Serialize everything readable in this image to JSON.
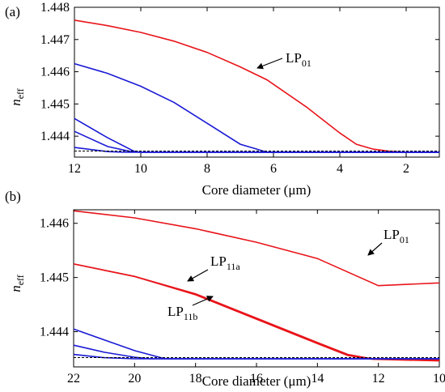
{
  "figure": {
    "panel_labels": [
      "(a)",
      "(b)"
    ]
  },
  "colors": {
    "fundamental": "#e8141a",
    "higher": "#1a1ad6",
    "cladding": "#000000"
  },
  "chart_data": [
    {
      "type": "line",
      "panel": "(a)",
      "xlabel": "Core diameter (μm)",
      "ylabel_main": "n",
      "ylabel_sub": "eff",
      "xlim": [
        12,
        1
      ],
      "ylim": [
        1.44335,
        1.448
      ],
      "x_reversed": true,
      "xticks": [
        12,
        10,
        8,
        6,
        4,
        2
      ],
      "yticks": [
        1.444,
        1.445,
        1.446,
        1.447,
        1.448
      ],
      "cladding_index": 1.4435,
      "series": [
        {
          "name": "LP01",
          "label_main": "LP",
          "label_sub": "01",
          "color": "#e8141a",
          "points": [
            [
              12,
              1.4476
            ],
            [
              11,
              1.44743
            ],
            [
              10,
              1.44722
            ],
            [
              9,
              1.44695
            ],
            [
              8,
              1.4466
            ],
            [
              7,
              1.44615
            ],
            [
              6.2,
              1.44575
            ],
            [
              5,
              1.4449
            ],
            [
              4,
              1.4441
            ],
            [
              3.5,
              1.44375
            ],
            [
              3,
              1.4436
            ],
            [
              2.5,
              1.44353
            ],
            [
              2,
              1.4435
            ],
            [
              1,
              1.4435
            ]
          ]
        },
        {
          "color": "#1a1ad6",
          "points": [
            [
              12,
              1.44625
            ],
            [
              11,
              1.44595
            ],
            [
              10,
              1.44555
            ],
            [
              9,
              1.44505
            ],
            [
              8,
              1.4444
            ],
            [
              7,
              1.44375
            ],
            [
              6.5,
              1.4436
            ],
            [
              6.2,
              1.4435
            ],
            [
              1,
              1.4435
            ]
          ]
        },
        {
          "color": "#1a1ad6",
          "points": [
            [
              12,
              1.44455
            ],
            [
              11,
              1.44395
            ],
            [
              10.2,
              1.44353
            ],
            [
              10,
              1.4435
            ],
            [
              1,
              1.4435
            ]
          ]
        },
        {
          "color": "#1a1ad6",
          "points": [
            [
              12,
              1.44415
            ],
            [
              11,
              1.44368
            ],
            [
              10.3,
              1.44352
            ],
            [
              10,
              1.4435
            ],
            [
              1,
              1.4435
            ]
          ]
        },
        {
          "color": "#1a1ad6",
          "points": [
            [
              12,
              1.44365
            ],
            [
              11,
              1.44352
            ],
            [
              10.5,
              1.4435
            ],
            [
              1,
              1.4435
            ]
          ]
        }
      ]
    },
    {
      "type": "line",
      "panel": "(b)",
      "xlabel": "Core diameter (μm)",
      "ylabel_main": "n",
      "ylabel_sub": "eff",
      "xlim": [
        22,
        10
      ],
      "ylim": [
        1.44335,
        1.44625
      ],
      "x_reversed": true,
      "xticks": [
        22,
        20,
        18,
        16,
        14,
        12,
        10
      ],
      "yticks": [
        1.444,
        1.445,
        1.446
      ],
      "cladding_index": 1.4435,
      "series": [
        {
          "name": "LP01",
          "label_main": "LP",
          "label_sub": "01",
          "color": "#e8141a",
          "points": [
            [
              22,
              1.44623
            ],
            [
              20,
              1.4461
            ],
            [
              18,
              1.4459
            ],
            [
              16,
              1.44565
            ],
            [
              14,
              1.44535
            ],
            [
              12,
              1.44485
            ],
            [
              10,
              1.4449
            ]
          ]
        },
        {
          "name": "LP11a",
          "label_main": "LP",
          "label_sub": "11a",
          "color": "#e8141a",
          "points": [
            [
              22,
              1.44525
            ],
            [
              20,
              1.44502
            ],
            [
              18,
              1.4447
            ],
            [
              16,
              1.44425
            ],
            [
              14,
              1.4438
            ],
            [
              13,
              1.44358
            ],
            [
              12.2,
              1.4435
            ],
            [
              10,
              1.44348
            ]
          ]
        },
        {
          "name": "LP11b",
          "label_main": "LP",
          "label_sub": "11b",
          "color": "#e8141a",
          "points": [
            [
              22,
              1.44525
            ],
            [
              20,
              1.44502
            ],
            [
              18,
              1.44468
            ],
            [
              16,
              1.44423
            ],
            [
              14,
              1.44378
            ],
            [
              13,
              1.44356
            ],
            [
              12.2,
              1.44349
            ],
            [
              10,
              1.44346
            ]
          ]
        },
        {
          "color": "#1a1ad6",
          "points": [
            [
              22,
              1.44405
            ],
            [
              21,
              1.44385
            ],
            [
              20,
              1.44365
            ],
            [
              19,
              1.4435
            ],
            [
              10,
              1.4435
            ]
          ]
        },
        {
          "color": "#1a1ad6",
          "points": [
            [
              22,
              1.44375
            ],
            [
              21,
              1.44362
            ],
            [
              20,
              1.44353
            ],
            [
              19.5,
              1.4435
            ],
            [
              10,
              1.4435
            ]
          ]
        },
        {
          "color": "#1a1ad6",
          "points": [
            [
              22,
              1.44358
            ],
            [
              21,
              1.44352
            ],
            [
              20,
              1.4435
            ],
            [
              10,
              1.4435
            ]
          ]
        }
      ]
    }
  ]
}
